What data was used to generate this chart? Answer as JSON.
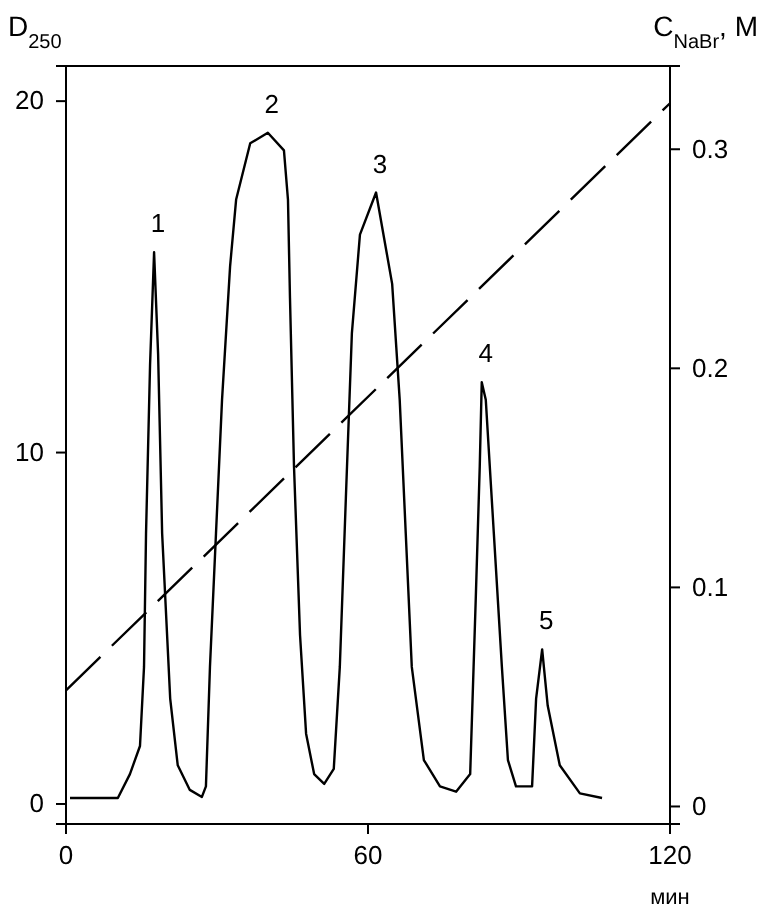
{
  "chart_data": {
    "type": "line",
    "xlabel": "мин",
    "ylabel": "D$_{250}$",
    "y2label": "C$_{NaBr}$, M",
    "xlim": [
      0,
      120
    ],
    "xticks": [
      0,
      60,
      120
    ],
    "ylim": [
      -0.57,
      21
    ],
    "yticks": [
      0,
      10,
      20
    ],
    "y2lim": [
      -0.008,
      0.338
    ],
    "y2ticks": [
      0,
      0.1,
      0.2,
      0.3
    ],
    "grid": false,
    "marker": "none",
    "series": [
      {
        "color": "#000000",
        "line_style": "solid",
        "x": [
          0.8,
          10.3,
          12.7,
          14.7,
          15.5,
          15.9,
          16.7,
          17.5,
          18.3,
          19.1,
          20.7,
          22.2,
          24.6,
          27,
          27.8,
          28.6,
          29.8,
          31,
          32.6,
          33.8,
          36.6,
          40.1,
          43.3,
          44.1,
          44.5,
          45.3,
          46.5,
          47.7,
          49.3,
          51.3,
          53.2,
          54.4,
          55.6,
          56.8,
          58.4,
          61.6,
          63.2,
          64.8,
          66.3,
          67.5,
          68.7,
          71.1,
          74.3,
          77.5,
          80.3,
          81.4,
          82.2,
          82.6,
          83.4,
          85,
          86.6,
          87.8,
          89.4,
          92.6,
          93.4,
          94.6,
          95.7,
          98.1,
          102.1,
          106.5
        ],
        "values": [
          0.17,
          0.17,
          0.85,
          1.65,
          3.9,
          7.7,
          12.5,
          15.7,
          12.8,
          7.7,
          3.0,
          1.1,
          0.4,
          0.2,
          0.5,
          3.9,
          7.7,
          11.5,
          15.3,
          17.2,
          18.8,
          19.1,
          18.6,
          17.2,
          14.4,
          9.6,
          4.8,
          2.0,
          0.85,
          0.57,
          1.0,
          3.9,
          8.7,
          13.4,
          16.2,
          17.4,
          16.1,
          14.8,
          11.5,
          7.7,
          3.9,
          1.25,
          0.5,
          0.35,
          0.85,
          5.8,
          9.6,
          12.0,
          11.5,
          7.7,
          3.9,
          1.25,
          0.5,
          0.5,
          3.0,
          4.4,
          2.8,
          1.1,
          0.3,
          0.17
        ]
      },
      {
        "color": "#000000",
        "line_style": "dashed",
        "axis": "y2",
        "x": [
          0,
          120
        ],
        "values": [
          0.053,
          0.321
        ]
      }
    ],
    "annotations": [
      {
        "text": "1",
        "x": 17.5,
        "y": 15.7
      },
      {
        "text": "2",
        "x": 40.1,
        "y": 19.1
      },
      {
        "text": "3",
        "x": 61.6,
        "y": 17.4
      },
      {
        "text": "4",
        "x": 82.6,
        "y": 12.0
      },
      {
        "text": "5",
        "x": 94.6,
        "y": 4.4
      }
    ]
  }
}
